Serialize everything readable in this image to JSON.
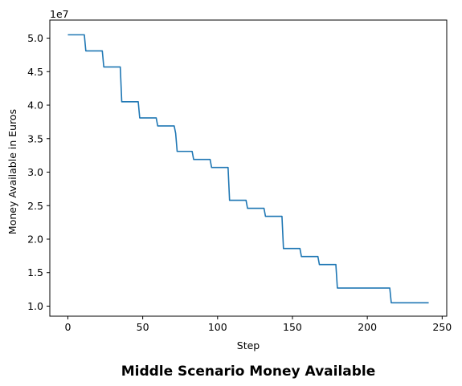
{
  "chart_data": {
    "type": "line",
    "title": "Middle Scenario Money Available",
    "xlabel": "Step",
    "ylabel": "Money Available in Euros",
    "y_offset_label": "1e7",
    "y_scale": 10000000,
    "xlim": [
      -12.05,
      253.05
    ],
    "ylim": [
      0.85,
      5.27
    ],
    "xticks": [
      0,
      50,
      100,
      150,
      200,
      250
    ],
    "xtick_labels": [
      "0",
      "50",
      "100",
      "150",
      "200",
      "250"
    ],
    "yticks": [
      1.0,
      1.5,
      2.0,
      2.5,
      3.0,
      3.5,
      4.0,
      4.5,
      5.0
    ],
    "ytick_labels": [
      "1.0",
      "1.5",
      "2.0",
      "2.5",
      "3.0",
      "3.5",
      "4.0",
      "4.5",
      "5.0"
    ],
    "grid": false,
    "color": "#1f77b4",
    "series": [
      {
        "x": [
          0,
          11,
          12,
          23,
          24,
          35,
          36,
          47,
          48,
          59,
          60,
          71,
          72,
          73,
          83,
          84,
          95,
          96,
          107,
          108,
          119,
          120,
          131,
          132,
          143,
          144,
          155,
          156,
          167,
          168,
          179,
          180,
          215,
          216,
          241
        ],
        "y": [
          5.05,
          5.05,
          4.81,
          4.81,
          4.57,
          4.57,
          4.05,
          4.05,
          3.81,
          3.81,
          3.69,
          3.69,
          3.58,
          3.31,
          3.31,
          3.19,
          3.19,
          3.07,
          3.07,
          2.58,
          2.58,
          2.46,
          2.46,
          2.34,
          2.34,
          1.86,
          1.86,
          1.74,
          1.74,
          1.62,
          1.62,
          1.27,
          1.27,
          1.05,
          1.05
        ]
      }
    ]
  }
}
